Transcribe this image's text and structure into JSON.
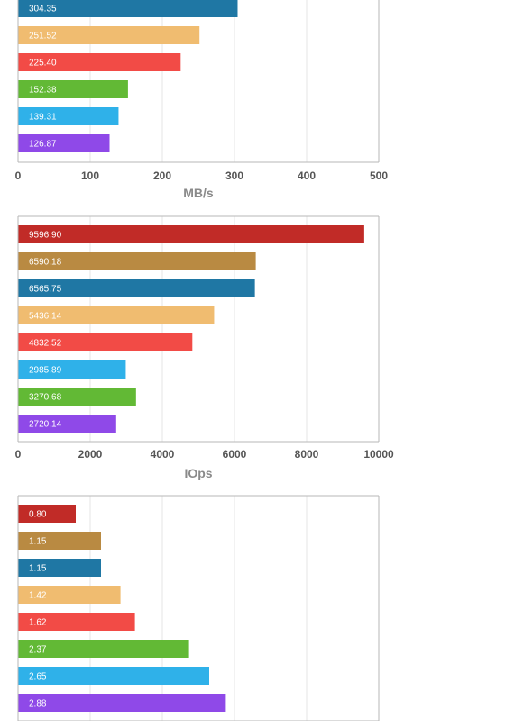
{
  "chart_data": [
    {
      "type": "bar",
      "orientation": "horizontal",
      "values": [
        304.35,
        251.52,
        225.4,
        152.38,
        139.31,
        126.87
      ],
      "value_labels": [
        "304.35",
        "251.52",
        "225.40",
        "152.38",
        "139.31",
        "126.87"
      ],
      "bar_colors": [
        "#1f77a4",
        "#f0bc70",
        "#f24b46",
        "#62b935",
        "#2fb1e9",
        "#8f49e8"
      ],
      "xlim": [
        0,
        500
      ],
      "ticks": [
        "0",
        "100",
        "200",
        "300",
        "400",
        "500"
      ],
      "xlabel": "MB/s",
      "grid": true
    },
    {
      "type": "bar",
      "orientation": "horizontal",
      "values": [
        9596.9,
        6590.18,
        6565.75,
        5436.14,
        4832.52,
        2985.89,
        3270.68,
        2720.14
      ],
      "value_labels": [
        "9596.90",
        "6590.18",
        "6565.75",
        "5436.14",
        "4832.52",
        "2985.89",
        "3270.68",
        "2720.14"
      ],
      "bar_colors": [
        "#c12b27",
        "#b98a42",
        "#1f77a4",
        "#f0bc70",
        "#f24b46",
        "#2fb1e9",
        "#62b935",
        "#8f49e8"
      ],
      "xlim": [
        0,
        10000
      ],
      "ticks": [
        "0",
        "2000",
        "4000",
        "6000",
        "8000",
        "10000"
      ],
      "xlabel": "IOps",
      "grid": true
    },
    {
      "type": "bar",
      "orientation": "horizontal",
      "values": [
        0.8,
        1.15,
        1.15,
        1.42,
        1.62,
        2.37,
        2.65,
        2.88
      ],
      "value_labels": [
        "0.80",
        "1.15",
        "1.15",
        "1.42",
        "1.62",
        "2.37",
        "2.65",
        "2.88"
      ],
      "bar_colors": [
        "#c12b27",
        "#b98a42",
        "#1f77a4",
        "#f0bc70",
        "#f24b46",
        "#62b935",
        "#2fb1e9",
        "#8f49e8"
      ],
      "xlim": [
        0,
        5
      ],
      "ticks": [],
      "xlabel": "",
      "grid": true
    }
  ]
}
